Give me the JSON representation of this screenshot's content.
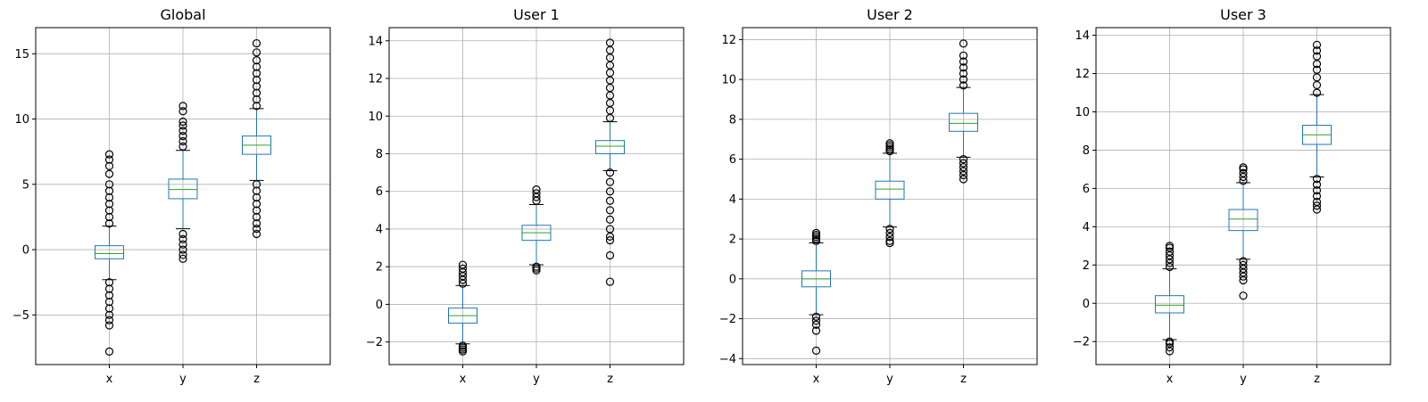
{
  "chart_data": [
    {
      "type": "box",
      "title": "Global",
      "categories": [
        "x",
        "y",
        "z"
      ],
      "ylim": [
        -8.8,
        17.0
      ],
      "yticks": [
        -5,
        0,
        5,
        10,
        15
      ],
      "ytick_labels": [
        "−5",
        "0",
        "5",
        "10",
        "15"
      ],
      "grid": true,
      "boxes": [
        {
          "q1": -0.7,
          "median": -0.3,
          "q3": 0.3,
          "whisker_low": -2.3,
          "whisker_high": 1.8,
          "outliers_low": [
            -2.5,
            -3.0,
            -3.5,
            -4.0,
            -4.5,
            -5.0,
            -5.4,
            -5.8,
            -7.8
          ],
          "outliers_high": [
            2.0,
            2.5,
            3.0,
            3.5,
            4.0,
            4.5,
            5.0,
            5.8,
            6.4,
            6.9,
            7.3
          ]
        },
        {
          "q1": 3.9,
          "median": 4.6,
          "q3": 5.4,
          "whisker_low": 1.6,
          "whisker_high": 7.6,
          "outliers_low": [
            1.2,
            0.8,
            0.4,
            0.0,
            -0.4,
            -0.7
          ],
          "outliers_high": [
            7.9,
            8.3,
            8.7,
            9.1,
            9.5,
            9.8,
            10.6,
            11.0
          ]
        },
        {
          "q1": 7.3,
          "median": 8.0,
          "q3": 8.7,
          "whisker_low": 5.3,
          "whisker_high": 10.8,
          "outliers_low": [
            5.0,
            4.5,
            4.0,
            3.5,
            3.0,
            2.5,
            2.0,
            1.6,
            1.2
          ],
          "outliers_high": [
            11.0,
            11.5,
            12.0,
            12.5,
            13.0,
            13.5,
            14.0,
            14.5,
            15.1,
            15.8
          ]
        }
      ]
    },
    {
      "type": "box",
      "title": "User 1",
      "categories": [
        "x",
        "y",
        "z"
      ],
      "ylim": [
        -3.2,
        14.7
      ],
      "yticks": [
        -2,
        0,
        2,
        4,
        6,
        8,
        10,
        12,
        14
      ],
      "ytick_labels": [
        "−2",
        "0",
        "2",
        "4",
        "6",
        "8",
        "10",
        "12",
        "14"
      ],
      "grid": true,
      "boxes": [
        {
          "q1": -1.0,
          "median": -0.6,
          "q3": -0.2,
          "whisker_low": -2.1,
          "whisker_high": 1.0,
          "outliers_low": [
            -2.2,
            -2.3,
            -2.4,
            -2.5
          ],
          "outliers_high": [
            1.1,
            1.3,
            1.5,
            1.7,
            1.9,
            2.1
          ]
        },
        {
          "q1": 3.4,
          "median": 3.8,
          "q3": 4.2,
          "whisker_low": 2.1,
          "whisker_high": 5.3,
          "outliers_low": [
            2.0,
            1.9,
            1.8
          ],
          "outliers_high": [
            5.5,
            5.7,
            5.9,
            6.1
          ]
        },
        {
          "q1": 8.0,
          "median": 8.4,
          "q3": 8.7,
          "whisker_low": 7.1,
          "whisker_high": 9.7,
          "outliers_low": [
            7.0,
            6.5,
            6.0,
            5.5,
            5.0,
            4.5,
            4.0,
            3.6,
            3.4,
            2.6,
            1.2
          ],
          "outliers_high": [
            9.9,
            10.3,
            10.7,
            11.1,
            11.5,
            11.9,
            12.3,
            12.7,
            13.1,
            13.5,
            13.9
          ]
        }
      ]
    },
    {
      "type": "box",
      "title": "User 2",
      "categories": [
        "x",
        "y",
        "z"
      ],
      "ylim": [
        -4.3,
        12.6
      ],
      "yticks": [
        -4,
        -2,
        0,
        2,
        4,
        6,
        8,
        10,
        12
      ],
      "ytick_labels": [
        "−4",
        "−2",
        "0",
        "2",
        "4",
        "6",
        "8",
        "10",
        "12"
      ],
      "grid": true,
      "boxes": [
        {
          "q1": -0.4,
          "median": 0.0,
          "q3": 0.4,
          "whisker_low": -1.8,
          "whisker_high": 1.8,
          "outliers_low": [
            -1.9,
            -2.1,
            -2.3,
            -2.6,
            -3.6
          ],
          "outliers_high": [
            1.9,
            2.0,
            2.1,
            2.2,
            2.3
          ]
        },
        {
          "q1": 4.0,
          "median": 4.5,
          "q3": 4.9,
          "whisker_low": 2.6,
          "whisker_high": 6.3,
          "outliers_low": [
            2.5,
            2.3,
            2.1,
            1.9,
            1.8
          ],
          "outliers_high": [
            6.4,
            6.5,
            6.6,
            6.7,
            6.8
          ]
        },
        {
          "q1": 7.4,
          "median": 7.8,
          "q3": 8.3,
          "whisker_low": 6.1,
          "whisker_high": 9.6,
          "outliers_low": [
            6.0,
            5.8,
            5.6,
            5.4,
            5.2,
            5.0
          ],
          "outliers_high": [
            9.7,
            10.0,
            10.3,
            10.6,
            10.9,
            11.2,
            11.8
          ]
        }
      ]
    },
    {
      "type": "box",
      "title": "User 3",
      "categories": [
        "x",
        "y",
        "z"
      ],
      "ylim": [
        -3.2,
        14.4
      ],
      "yticks": [
        -2,
        0,
        2,
        4,
        6,
        8,
        10,
        12,
        14
      ],
      "ytick_labels": [
        "−2",
        "0",
        "2",
        "4",
        "6",
        "8",
        "10",
        "12",
        "14"
      ],
      "grid": true,
      "boxes": [
        {
          "q1": -0.5,
          "median": -0.1,
          "q3": 0.4,
          "whisker_low": -1.9,
          "whisker_high": 1.8,
          "outliers_low": [
            -2.0,
            -2.1,
            -2.3,
            -2.5
          ],
          "outliers_high": [
            1.9,
            2.1,
            2.3,
            2.5,
            2.7,
            2.9,
            3.0
          ]
        },
        {
          "q1": 3.8,
          "median": 4.4,
          "q3": 4.9,
          "whisker_low": 2.3,
          "whisker_high": 6.3,
          "outliers_low": [
            2.2,
            2.0,
            1.8,
            1.6,
            1.4,
            1.2,
            0.4
          ],
          "outliers_high": [
            6.4,
            6.6,
            6.8,
            7.0,
            7.1
          ]
        },
        {
          "q1": 8.3,
          "median": 8.8,
          "q3": 9.3,
          "whisker_low": 6.6,
          "whisker_high": 10.9,
          "outliers_low": [
            6.5,
            6.2,
            5.9,
            5.6,
            5.3,
            5.1,
            4.9
          ],
          "outliers_high": [
            11.0,
            11.4,
            11.8,
            12.2,
            12.5,
            12.9,
            13.2,
            13.5
          ]
        }
      ]
    }
  ],
  "colors": {
    "box": "#1f77b4",
    "median": "#2ca02c",
    "grid": "#b0b0b0",
    "axes": "#000000",
    "flier": "#000000"
  }
}
